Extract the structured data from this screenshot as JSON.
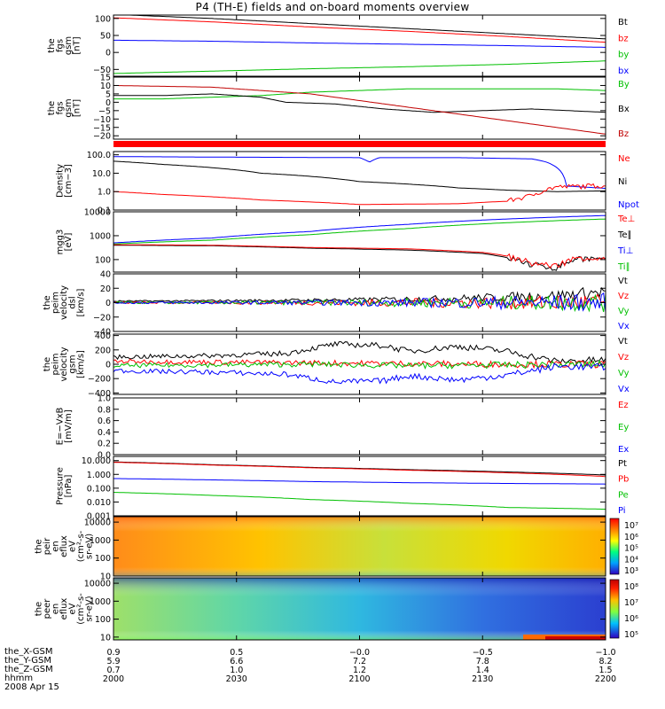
{
  "title": "P4 (TH-E) fields and on-board moments overview",
  "date": "2008 Apr 15",
  "chart_data": [
    {
      "type": "line",
      "ylabel": "the\nfgs\ngsm\n[nT]",
      "ylim": [
        -70,
        110
      ],
      "yticks": [
        100,
        50,
        0,
        -50
      ],
      "ytick_labels": [
        "100",
        "50",
        "0",
        "−50"
      ],
      "legend": [
        {
          "name": "Bt",
          "color": "#000000"
        },
        {
          "name": "bz",
          "color": "#ff0000"
        },
        {
          "name": "by",
          "color": "#00c000"
        },
        {
          "name": "bx",
          "color": "#0000ff"
        }
      ],
      "series": [
        {
          "name": "Bt",
          "color": "#000000",
          "x": [
            0,
            0.2,
            0.4,
            0.6,
            0.8,
            1.0
          ],
          "y": [
            112,
            100,
            85,
            70,
            55,
            40
          ]
        },
        {
          "name": "bz",
          "color": "#ff0000",
          "x": [
            0,
            0.2,
            0.4,
            0.6,
            0.8,
            1.0
          ],
          "y": [
            102,
            90,
            75,
            62,
            47,
            30
          ]
        },
        {
          "name": "by",
          "color": "#00c000",
          "x": [
            0,
            0.2,
            0.4,
            0.6,
            0.8,
            1.0
          ],
          "y": [
            -62,
            -55,
            -48,
            -42,
            -35,
            -25
          ]
        },
        {
          "name": "bx",
          "color": "#0000ff",
          "x": [
            0,
            0.2,
            0.4,
            0.6,
            0.8,
            1.0
          ],
          "y": [
            36,
            33,
            28,
            24,
            20,
            15
          ]
        }
      ]
    },
    {
      "type": "line",
      "ylabel": "the\nfgs\ngsm\n[nT]",
      "ylim": [
        -22,
        15
      ],
      "yticks": [
        15,
        10,
        5,
        0,
        -5,
        -10,
        -15,
        -20
      ],
      "ytick_labels": [
        "15",
        "10",
        "5",
        "0",
        "−5",
        "−10",
        "−15",
        "−20"
      ],
      "legend": [
        {
          "name": "By",
          "color": "#00c000"
        },
        {
          "name": "Bx",
          "color": "#000000"
        },
        {
          "name": "Bz",
          "color": "#c00000"
        }
      ],
      "series": [
        {
          "name": "By",
          "color": "#00c000",
          "x": [
            0,
            0.1,
            0.2,
            0.3,
            0.4,
            0.5,
            0.6,
            0.7,
            0.8,
            0.9,
            1.0
          ],
          "y": [
            2,
            2,
            3,
            4,
            6,
            7,
            8,
            8,
            8,
            8,
            7
          ]
        },
        {
          "name": "Bx",
          "color": "#000000",
          "x": [
            0,
            0.1,
            0.2,
            0.3,
            0.35,
            0.45,
            0.55,
            0.65,
            0.75,
            0.85,
            1.0
          ],
          "y": [
            4,
            4,
            5,
            3,
            0,
            -1,
            -4,
            -6,
            -5,
            -4,
            -6
          ]
        },
        {
          "name": "Bz",
          "color": "#c00000",
          "x": [
            0,
            0.2,
            0.3,
            0.4,
            0.5,
            0.6,
            0.7,
            0.8,
            0.9,
            1.0
          ],
          "y": [
            10,
            9,
            7,
            5,
            1,
            -3,
            -7,
            -11,
            -15,
            -19
          ]
        }
      ]
    },
    {
      "type": "line",
      "ylabel": "Density\n[cm−3]",
      "yscale": "log",
      "ylim": [
        0.1,
        150
      ],
      "yticks": [
        100,
        10,
        1,
        0.1
      ],
      "ytick_labels": [
        "100.0",
        "10.0",
        "1.0",
        "0.1"
      ],
      "legend": [
        {
          "name": "Ne",
          "color": "#ff0000"
        },
        {
          "name": "Ni",
          "color": "#000000"
        },
        {
          "name": "Npot",
          "color": "#0000ff"
        }
      ],
      "series": [
        {
          "name": "Npot",
          "color": "#0000ff",
          "x": [
            0,
            0.2,
            0.5,
            0.52,
            0.54,
            0.7,
            0.85,
            0.88,
            0.92,
            1.0
          ],
          "y": [
            80,
            75,
            70,
            40,
            70,
            70,
            60,
            40,
            2,
            1.5
          ]
        },
        {
          "name": "Ni",
          "color": "#000000",
          "x": [
            0,
            0.1,
            0.3,
            0.5,
            0.7,
            0.8,
            0.9,
            1.0
          ],
          "y": [
            45,
            30,
            10,
            3.5,
            1.6,
            1.2,
            1.0,
            1.1
          ]
        },
        {
          "name": "Ne",
          "color": "#ff0000",
          "x": [
            0,
            0.1,
            0.3,
            0.5,
            0.7,
            0.8,
            0.85,
            0.9,
            1.0
          ],
          "y": [
            1.0,
            0.7,
            0.35,
            0.2,
            0.22,
            0.3,
            0.6,
            1.8,
            2.2
          ]
        }
      ]
    },
    {
      "type": "line",
      "ylabel": "mgg3\n[eV]",
      "yscale": "log",
      "ylim": [
        30,
        10000
      ],
      "yticks": [
        10000,
        1000,
        100
      ],
      "ytick_labels": [
        "10000",
        "1000",
        "100"
      ],
      "legend": [
        {
          "name": "Te⊥",
          "color": "#ff0000"
        },
        {
          "name": "Te∥",
          "color": "#000000"
        },
        {
          "name": "Ti⊥",
          "color": "#0000ff"
        },
        {
          "name": "Ti∥",
          "color": "#00c000"
        }
      ],
      "series": [
        {
          "name": "Ti⊥",
          "color": "#0000ff",
          "x": [
            0,
            0.2,
            0.4,
            0.6,
            0.8,
            1.0
          ],
          "y": [
            500,
            800,
            1500,
            3000,
            5000,
            7000
          ]
        },
        {
          "name": "Ti∥",
          "color": "#00c000",
          "x": [
            0,
            0.2,
            0.4,
            0.6,
            0.8,
            1.0
          ],
          "y": [
            450,
            650,
            1100,
            2000,
            3500,
            5000
          ]
        },
        {
          "name": "Te∥",
          "color": "#000000",
          "x": [
            0,
            0.2,
            0.4,
            0.6,
            0.75,
            0.8,
            0.85,
            0.9,
            0.95,
            1.0
          ],
          "y": [
            400,
            380,
            300,
            250,
            180,
            120,
            60,
            45,
            120,
            90
          ]
        },
        {
          "name": "Te⊥",
          "color": "#ff0000",
          "x": [
            0,
            0.2,
            0.4,
            0.6,
            0.75,
            0.8,
            0.85,
            0.9,
            0.95,
            1.0
          ],
          "y": [
            420,
            400,
            320,
            280,
            200,
            140,
            70,
            55,
            130,
            100
          ]
        }
      ]
    },
    {
      "type": "line",
      "ylabel": "the\npeim\nvelocity\ndsl\n[km/s]",
      "ylim": [
        -40,
        40
      ],
      "yticks": [
        40,
        20,
        0,
        -20,
        -40
      ],
      "ytick_labels": [
        "40",
        "20",
        "0",
        "−20",
        "−40"
      ],
      "legend": [
        {
          "name": "Vt",
          "color": "#000000"
        },
        {
          "name": "Vz",
          "color": "#ff0000"
        },
        {
          "name": "Vy",
          "color": "#00c000"
        },
        {
          "name": "Vx",
          "color": "#0000ff"
        }
      ],
      "series": [
        {
          "name": "Vt",
          "color": "#000000",
          "x": [
            0,
            0.3,
            0.5,
            0.7,
            0.9,
            1.0
          ],
          "y": [
            2,
            3,
            4,
            6,
            10,
            15
          ]
        },
        {
          "name": "Vz",
          "color": "#ff0000",
          "x": [
            0,
            0.5,
            1.0
          ],
          "y": [
            0,
            0,
            0
          ]
        },
        {
          "name": "Vy",
          "color": "#00c000",
          "x": [
            0,
            0.5,
            1.0
          ],
          "y": [
            0,
            0,
            0
          ]
        },
        {
          "name": "Vx",
          "color": "#0000ff",
          "x": [
            0,
            0.5,
            1.0
          ],
          "y": [
            0,
            0,
            0
          ]
        }
      ]
    },
    {
      "type": "line",
      "ylabel": "the\npeim\nvelocity\ngsm\n[km/s]",
      "ylim": [
        -420,
        420
      ],
      "yticks": [
        400,
        200,
        0,
        -200,
        -400
      ],
      "ytick_labels": [
        "400",
        "200",
        "0",
        "−200",
        "−400"
      ],
      "legend": [
        {
          "name": "Vt",
          "color": "#000000"
        },
        {
          "name": "Vz",
          "color": "#ff0000"
        },
        {
          "name": "Vy",
          "color": "#00c000"
        },
        {
          "name": "Vx",
          "color": "#0000ff"
        }
      ],
      "series": [
        {
          "name": "Vt",
          "color": "#000000",
          "x": [
            0,
            0.2,
            0.35,
            0.45,
            0.55,
            0.6,
            0.7,
            0.8,
            0.9,
            1.0
          ],
          "y": [
            100,
            120,
            150,
            280,
            260,
            180,
            250,
            180,
            40,
            60
          ]
        },
        {
          "name": "Vz",
          "color": "#ff0000",
          "x": [
            0,
            0.2,
            0.4,
            0.6,
            0.8,
            1.0
          ],
          "y": [
            40,
            30,
            20,
            10,
            0,
            0
          ]
        },
        {
          "name": "Vy",
          "color": "#00c000",
          "x": [
            0,
            0.2,
            0.4,
            0.6,
            0.8,
            1.0
          ],
          "y": [
            -20,
            -10,
            0,
            -20,
            -10,
            0
          ]
        },
        {
          "name": "Vx",
          "color": "#0000ff",
          "x": [
            0,
            0.2,
            0.35,
            0.45,
            0.55,
            0.6,
            0.7,
            0.8,
            0.9,
            1.0
          ],
          "y": [
            -90,
            -110,
            -140,
            -250,
            -230,
            -160,
            -220,
            -150,
            -30,
            -40
          ]
        }
      ]
    },
    {
      "type": "line",
      "ylabel": "E=−VxB\n[mV/m]",
      "ylim": [
        0,
        1.0
      ],
      "yticks": [
        1.0,
        0.8,
        0.6,
        0.4,
        0.2,
        0.0
      ],
      "ytick_labels": [
        "1.0",
        "0.8",
        "0.6",
        "0.4",
        "0.2",
        "0.0"
      ],
      "legend": [
        {
          "name": "Ez",
          "color": "#ff0000"
        },
        {
          "name": "Ey",
          "color": "#00c000"
        },
        {
          "name": "Ex",
          "color": "#0000ff"
        }
      ],
      "series": []
    },
    {
      "type": "line",
      "ylabel": "Pressure\n[nPa]",
      "yscale": "log",
      "ylim": [
        0.001,
        20
      ],
      "yticks": [
        10,
        1,
        0.1,
        0.01,
        0.001
      ],
      "ytick_labels": [
        "10.000",
        "1.000",
        "0.100",
        "0.010",
        "0.001"
      ],
      "legend": [
        {
          "name": "Pt",
          "color": "#000000"
        },
        {
          "name": "Pb",
          "color": "#ff0000"
        },
        {
          "name": "Pe",
          "color": "#00c000"
        },
        {
          "name": "Pi",
          "color": "#0000ff"
        }
      ],
      "series": [
        {
          "name": "Pt",
          "color": "#000000",
          "x": [
            0,
            0.2,
            0.4,
            0.6,
            0.8,
            1.0
          ],
          "y": [
            8,
            5,
            3.2,
            2.2,
            1.5,
            0.9
          ]
        },
        {
          "name": "Pb",
          "color": "#ff0000",
          "x": [
            0,
            0.2,
            0.4,
            0.6,
            0.8,
            1.0
          ],
          "y": [
            7.5,
            4.7,
            3.0,
            2.0,
            1.3,
            0.7
          ]
        },
        {
          "name": "Pi",
          "color": "#0000ff",
          "x": [
            0,
            0.2,
            0.4,
            0.6,
            0.8,
            1.0
          ],
          "y": [
            0.5,
            0.4,
            0.3,
            0.25,
            0.22,
            0.2
          ]
        },
        {
          "name": "Pe",
          "color": "#00c000",
          "x": [
            0,
            0.2,
            0.4,
            0.6,
            0.8,
            1.0
          ],
          "y": [
            0.05,
            0.03,
            0.015,
            0.008,
            0.004,
            0.003
          ]
        }
      ]
    },
    {
      "type": "heatmap",
      "ylabel": "the\npeir\nen\neflux\neV\n(cm²-s-\nsr-eV)",
      "yscale": "log",
      "ylim": [
        10,
        20000
      ],
      "yticks": [
        10000,
        1000,
        100,
        10
      ],
      "ytick_labels": [
        "10000",
        "1000",
        "100",
        "10"
      ],
      "colorbar_labels": [
        "10⁷",
        "10⁶",
        "10⁵",
        "10⁴",
        "10³"
      ]
    },
    {
      "type": "heatmap",
      "ylabel": "the\npeer\nen\neflux\neV\n(cm²-s-\nsr-eV)",
      "yscale": "log",
      "ylim": [
        7,
        20000
      ],
      "yticks": [
        10000,
        1000,
        100,
        10
      ],
      "ytick_labels": [
        "10000",
        "1000",
        "100",
        "10"
      ],
      "colorbar_labels": [
        "10⁸",
        "10⁷",
        "10⁶",
        "10⁵"
      ]
    }
  ],
  "xaxis": {
    "rows": [
      {
        "label": "the_X-GSM",
        "values": [
          "0.9",
          "0.5",
          "−0.0",
          "−0.5",
          "−1.0"
        ]
      },
      {
        "label": "the_Y-GSM",
        "values": [
          "5.9",
          "6.6",
          "7.2",
          "7.8",
          "8.2"
        ]
      },
      {
        "label": "the_Z-GSM",
        "values": [
          "0.7",
          "1.0",
          "1.2",
          "1.4",
          "1.5"
        ]
      },
      {
        "label": "hhmm",
        "values": [
          "2000",
          "2030",
          "2100",
          "2130",
          "2200"
        ]
      }
    ]
  }
}
